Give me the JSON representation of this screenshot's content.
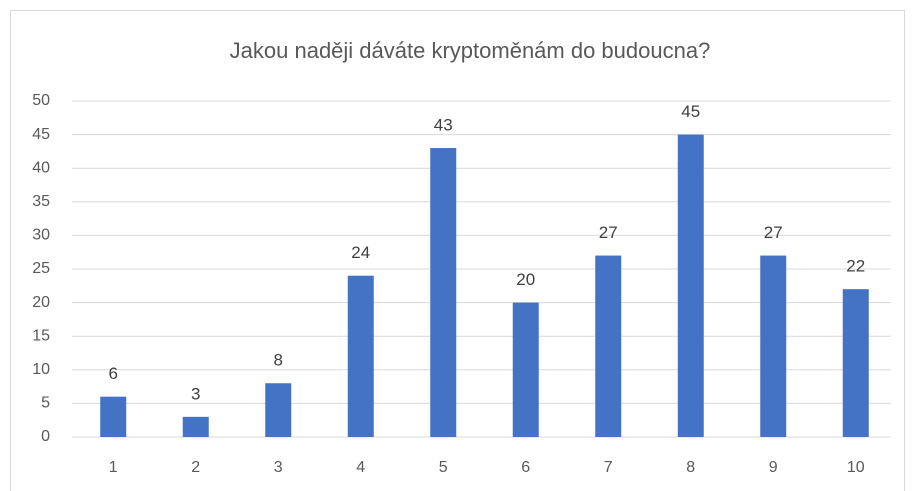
{
  "chart_data": {
    "type": "bar",
    "title": "Jakou naději dáváte kryptoměnám do budoucna?",
    "categories": [
      "1",
      "2",
      "3",
      "4",
      "5",
      "6",
      "7",
      "8",
      "9",
      "10"
    ],
    "values": [
      6,
      3,
      8,
      24,
      43,
      20,
      27,
      45,
      27,
      22
    ],
    "color": "#4472c4",
    "ylim": [
      0,
      50
    ],
    "yticks": [
      0,
      5,
      10,
      15,
      20,
      25,
      30,
      35,
      40,
      45,
      50
    ],
    "grid": true
  }
}
